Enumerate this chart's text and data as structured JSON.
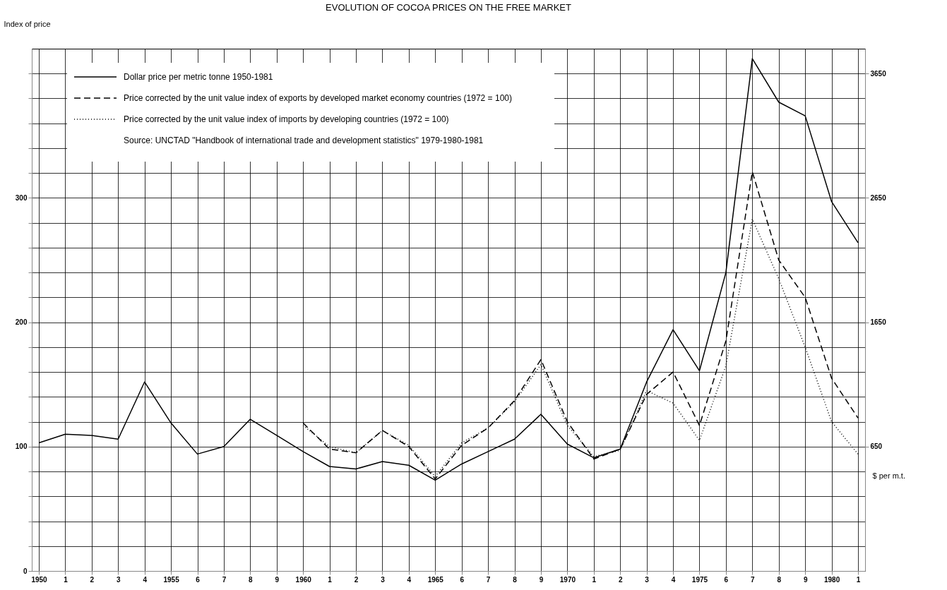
{
  "chart_data": {
    "type": "line",
    "title": "EVOLUTION OF COCOA PRICES ON THE FREE MARKET",
    "ylabel": "Index of price",
    "y2label": "$ per m.t.",
    "annotations": [
      "Source: UNCTAD \"Handbook of international trade and development statistics\" 1979-1980-1981"
    ],
    "categories": [
      "1950",
      "1",
      "2",
      "3",
      "4",
      "1955",
      "6",
      "7",
      "8",
      "9",
      "1960",
      "1",
      "2",
      "3",
      "4",
      "1965",
      "6",
      "7",
      "8",
      "9",
      "1970",
      "1",
      "2",
      "3",
      "4",
      "1975",
      "6",
      "7",
      "8",
      "9",
      "1980",
      "1"
    ],
    "series": [
      {
        "name": "Dollar price per metric tonne 1950-1981",
        "color": "#000000",
        "line_style": "solid",
        "values": [
          103,
          110,
          109,
          106,
          152,
          119,
          94,
          100,
          122,
          109,
          96,
          84,
          82,
          88,
          85,
          73,
          86,
          96,
          106,
          126,
          102,
          91,
          98,
          152,
          194,
          161,
          240,
          412,
          377,
          366,
          297,
          264
        ]
      },
      {
        "name": "Price corrected by the unit value index of exports by developed market economy countries (1972 = 100)",
        "color": "#000000",
        "line_style": "dashed",
        "values": [
          null,
          null,
          null,
          null,
          null,
          null,
          null,
          null,
          null,
          null,
          119,
          98,
          95,
          113,
          100,
          74,
          101,
          115,
          137,
          170,
          120,
          90,
          98,
          142,
          160,
          117,
          185,
          321,
          250,
          220,
          155,
          123
        ]
      },
      {
        "name": "Price corrected by the unit value index of imports by developing countries (1972 = 100)",
        "color": "#000000",
        "line_style": "dotted",
        "values": [
          null,
          null,
          null,
          null,
          null,
          null,
          null,
          null,
          null,
          null,
          117,
          100,
          95,
          113,
          101,
          76,
          103,
          115,
          136,
          166,
          117,
          92,
          97,
          145,
          135,
          105,
          165,
          283,
          235,
          180,
          120,
          94
        ]
      }
    ],
    "ylim": [
      0,
      420
    ],
    "yticks": [
      0,
      {
        "value": 20,
        "label": null
      },
      {
        "value": 40,
        "label": null
      },
      {
        "value": 60,
        "label": null
      },
      {
        "value": 80,
        "label": null
      },
      100,
      {
        "value": 120,
        "label": null
      },
      {
        "value": 140,
        "label": null
      },
      {
        "value": 160,
        "label": null
      },
      {
        "value": 180,
        "label": null
      },
      200,
      {
        "value": 220,
        "label": null
      },
      {
        "value": 240,
        "label": null
      },
      {
        "value": 260,
        "label": null
      },
      {
        "value": 280,
        "label": null
      },
      300,
      {
        "value": 320,
        "label": null
      },
      {
        "value": 340,
        "label": null
      },
      {
        "value": 360,
        "label": null
      },
      {
        "value": 380,
        "label": null
      },
      {
        "value": 400,
        "label": null
      }
    ],
    "y2lim": [
      -350,
      3850
    ],
    "y2ticks": [
      650,
      1650,
      2650,
      3650
    ],
    "grid": true,
    "legend": "top left"
  }
}
